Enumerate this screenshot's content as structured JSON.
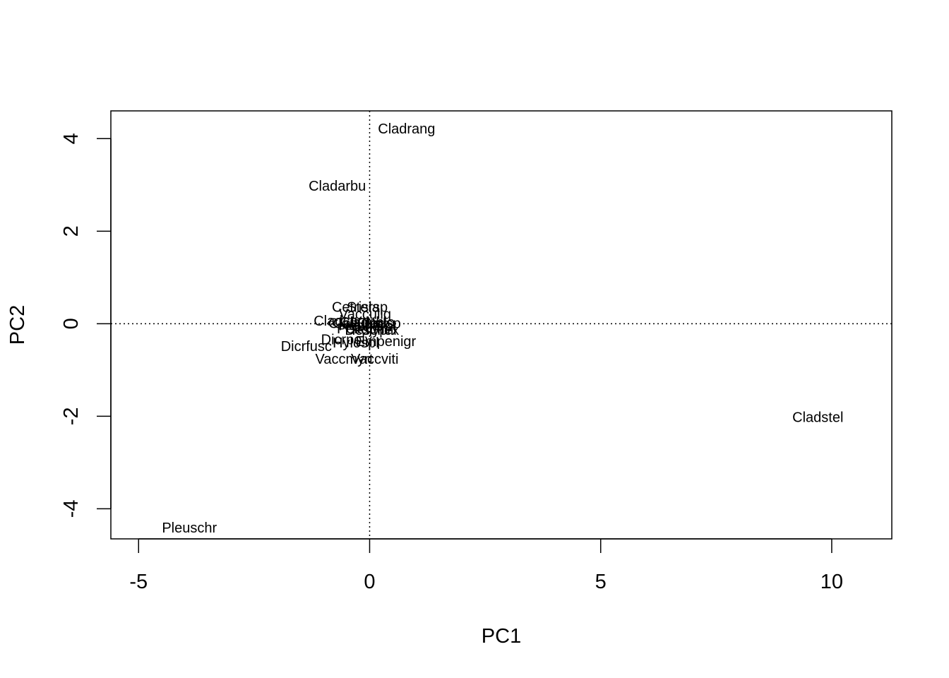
{
  "chart_data": {
    "type": "scatter",
    "title": "",
    "xlabel": "PC1",
    "ylabel": "PC2",
    "xlim": [
      -5.6,
      11.3
    ],
    "ylim": [
      -4.65,
      4.6
    ],
    "x_ticks": [
      -5,
      0,
      5,
      10
    ],
    "y_ticks": [
      -4,
      -2,
      0,
      2,
      4
    ],
    "x_tick_labels": [
      "-5",
      "0",
      "5",
      "10"
    ],
    "y_tick_labels": [
      "-4",
      "-2",
      "0",
      "2",
      "4"
    ],
    "reference_lines": {
      "x": 0,
      "y": 0,
      "style": "dotted"
    },
    "grid": false,
    "points": [
      {
        "label": "Cladrang",
        "x": 0.8,
        "y": 4.2
      },
      {
        "label": "Cladarbu",
        "x": -0.7,
        "y": 2.97
      },
      {
        "label": "Cladstel",
        "x": 9.7,
        "y": -2.03
      },
      {
        "label": "Pleuschr",
        "x": -3.9,
        "y": -4.42
      },
      {
        "label": "Dicrfusc",
        "x": -1.37,
        "y": -0.5
      },
      {
        "label": "Vaccmyrt",
        "x": -0.55,
        "y": -0.77
      },
      {
        "label": "Vaccviti",
        "x": 0.11,
        "y": -0.77
      },
      {
        "label": "Empenigr",
        "x": 0.35,
        "y": -0.39
      },
      {
        "label": "Hylospl",
        "x": -0.3,
        "y": -0.42
      },
      {
        "label": "Dicrpoly",
        "x": -0.5,
        "y": -0.35
      },
      {
        "label": "Cetrisla",
        "x": -0.3,
        "y": 0.35
      },
      {
        "label": "Stersp",
        "x": -0.05,
        "y": 0.35
      },
      {
        "label": "Vacculig",
        "x": -0.1,
        "y": 0.2
      },
      {
        "label": "Cladcorn",
        "x": -0.6,
        "y": 0.05
      },
      {
        "label": "Cladunci",
        "x": -0.3,
        "y": 0.0
      },
      {
        "label": "Cladchlo",
        "x": -0.05,
        "y": 0.02
      },
      {
        "label": "Cladsp",
        "x": 0.2,
        "y": 0.0
      },
      {
        "label": "Peltapht",
        "x": -0.15,
        "y": -0.12
      },
      {
        "label": "Polypili",
        "x": 0.1,
        "y": -0.15
      },
      {
        "label": "Nepharct",
        "x": -0.05,
        "y": -0.05
      },
      {
        "label": "Callvulg",
        "x": -0.25,
        "y": 0.0
      },
      {
        "label": "Descflex",
        "x": 0.05,
        "y": -0.15
      }
    ]
  }
}
